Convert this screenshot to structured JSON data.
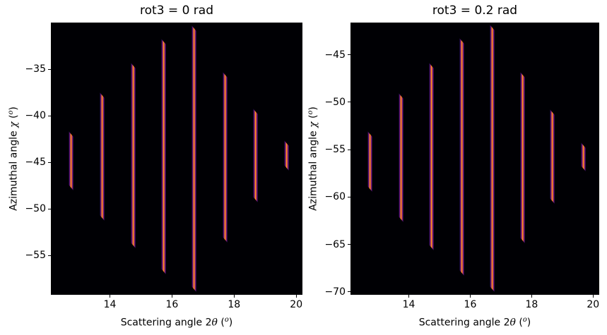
{
  "colors": {
    "figure_bg": "#ffffff",
    "plot_bg": "#000004",
    "peak_core": "#fcffa4",
    "peak_hot": "#fca40b",
    "peak_warm": "#e65d2f",
    "peak_outer": "#8c2981",
    "peak_edge": "#1b0c42",
    "text": "#000000"
  },
  "chart_data": [
    {
      "type": "heatmap",
      "title": "rot3 = 0 rad",
      "xlabel": {
        "pre": "Scattering angle 2",
        "sym": "θ",
        "mid": " (",
        "sup": "o",
        "post": ")"
      },
      "ylabel": {
        "pre": "Azimuthal angle ",
        "sym": "χ",
        "mid": " (",
        "sup": "o",
        "post": ")"
      },
      "xlim": [
        12.1,
        20.2
      ],
      "ylim": [
        -59.2,
        -30.0
      ],
      "grid": false,
      "legend": false,
      "xticks": [
        {
          "value": 14,
          "label": "14"
        },
        {
          "value": 16,
          "label": "16"
        },
        {
          "value": 18,
          "label": "18"
        },
        {
          "value": 20,
          "label": "20"
        }
      ],
      "yticks": [
        {
          "value": -35,
          "label": "−35"
        },
        {
          "value": -40,
          "label": "−40"
        },
        {
          "value": -45,
          "label": "−45"
        },
        {
          "value": -50,
          "label": "−50"
        },
        {
          "value": -55,
          "label": "−55"
        }
      ],
      "lines": [
        {
          "two_theta": 12.74,
          "chi_top": -41.6,
          "chi_bottom": -48.0
        },
        {
          "two_theta": 13.74,
          "chi_top": -37.5,
          "chi_bottom": -51.3
        },
        {
          "two_theta": 14.74,
          "chi_top": -34.3,
          "chi_bottom": -54.2
        },
        {
          "two_theta": 15.72,
          "chi_top": -31.7,
          "chi_bottom": -57.0
        },
        {
          "two_theta": 16.71,
          "chi_top": -30.3,
          "chi_bottom": -58.9
        },
        {
          "two_theta": 17.7,
          "chi_top": -35.3,
          "chi_bottom": -53.6
        },
        {
          "two_theta": 18.68,
          "chi_top": -39.2,
          "chi_bottom": -49.3
        },
        {
          "two_theta": 19.69,
          "chi_top": -42.6,
          "chi_bottom": -45.9
        }
      ]
    },
    {
      "type": "heatmap",
      "title": "rot3 = 0.2 rad",
      "xlabel": {
        "pre": "Scattering angle 2",
        "sym": "θ",
        "mid": " (",
        "sup": "o",
        "post": ")"
      },
      "ylabel": {
        "pre": "Azimuthal angle ",
        "sym": "χ",
        "mid": " (",
        "sup": "o",
        "post": ")"
      },
      "xlim": [
        12.1,
        20.2
      ],
      "ylim": [
        -70.3,
        -41.6
      ],
      "grid": false,
      "legend": false,
      "xticks": [
        {
          "value": 14,
          "label": "14"
        },
        {
          "value": 16,
          "label": "16"
        },
        {
          "value": 18,
          "label": "18"
        },
        {
          "value": 20,
          "label": "20"
        }
      ],
      "yticks": [
        {
          "value": -45,
          "label": "−45"
        },
        {
          "value": -50,
          "label": "−50"
        },
        {
          "value": -55,
          "label": "−55"
        },
        {
          "value": -60,
          "label": "−60"
        },
        {
          "value": -65,
          "label": "−65"
        },
        {
          "value": -70,
          "label": "−70"
        }
      ],
      "lines": [
        {
          "two_theta": 12.73,
          "chi_top": -53.0,
          "chi_bottom": -59.4
        },
        {
          "two_theta": 13.74,
          "chi_top": -49.0,
          "chi_bottom": -62.6
        },
        {
          "two_theta": 14.74,
          "chi_top": -45.8,
          "chi_bottom": -65.6
        },
        {
          "two_theta": 15.72,
          "chi_top": -43.2,
          "chi_bottom": -68.3
        },
        {
          "two_theta": 16.71,
          "chi_top": -41.8,
          "chi_bottom": -70.0
        },
        {
          "two_theta": 17.7,
          "chi_top": -46.8,
          "chi_bottom": -64.9
        },
        {
          "two_theta": 18.68,
          "chi_top": -50.7,
          "chi_bottom": -60.7
        },
        {
          "two_theta": 19.69,
          "chi_top": -54.2,
          "chi_bottom": -57.3
        }
      ]
    }
  ]
}
